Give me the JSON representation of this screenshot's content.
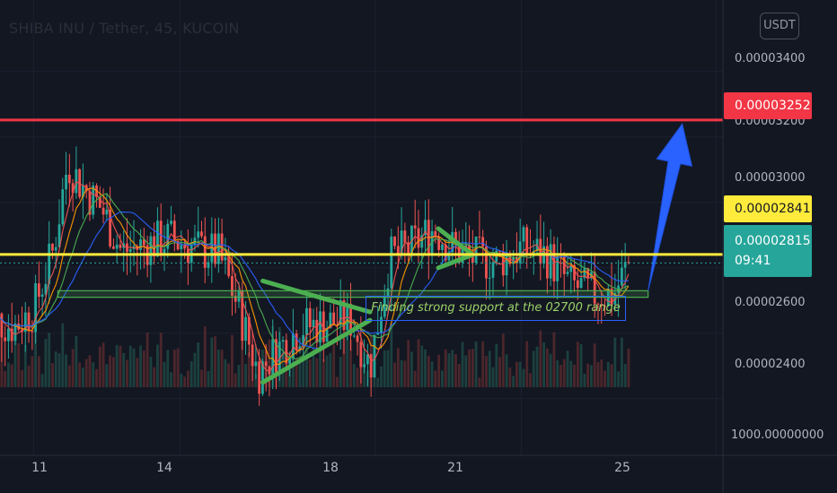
{
  "header": {
    "title": "SHIBA INU / Tether, 45, KUCOIN",
    "currency_button": "USDT"
  },
  "price_axis": {
    "tick_labels": [
      "0.00003400",
      "0.00003200",
      "0.00003000",
      "0.00002600",
      "0.00002400",
      "1000.00000000"
    ]
  },
  "time_axis": {
    "tick_labels": [
      "11",
      "14",
      "18",
      "21",
      "25"
    ]
  },
  "price_labels": {
    "resistance": "0.00003252",
    "support_line": "0.00002841",
    "current_price": "0.00002815",
    "countdown": "09:41"
  },
  "annotation": {
    "text": "Finding strong support at the 02700 range"
  },
  "colors": {
    "background": "#131722",
    "up": "#26a69a",
    "down": "#ef5350",
    "resistance": "#f23645",
    "support": "#ffeb3b",
    "pattern": "#4caf50",
    "arrow": "#2962ff",
    "zone": "#4caf50"
  },
  "chart_data": {
    "type": "candlestick",
    "symbol": "SHIBA INU / Tether",
    "interval": "45",
    "exchange": "KUCOIN",
    "currency": "USDT",
    "y_range": [
      2.32e-05,
      3.52e-05
    ],
    "x_range": [
      "10",
      "26"
    ],
    "horizontal_lines": [
      {
        "price": 3.252e-05,
        "color": "#f23645"
      },
      {
        "price": 2.841e-05,
        "color": "#ffeb3b"
      }
    ],
    "last_price": 2.815e-05,
    "support_zone": {
      "from_price": 2.71e-05,
      "to_price": 2.73e-05,
      "x_from": "11.5",
      "x_to": "23.6"
    },
    "annotations": [
      {
        "type": "triangle",
        "x": [
          "15.7",
          "17.9"
        ],
        "price_top": [
          2.76e-05,
          2.665e-05
        ],
        "price_bottom": [
          2.45e-05,
          2.64e-05
        ]
      },
      {
        "type": "triangle",
        "x": [
          "19.3",
          "20.0"
        ],
        "price_top": [
          2.92e-05,
          2.84e-05
        ],
        "price_bottom": [
          2.8e-05,
          2.84e-05
        ]
      },
      {
        "type": "arrow",
        "x": [
          "23.6",
          "24.3"
        ],
        "price": [
          2.73e-05,
          3.24e-05
        ]
      },
      {
        "type": "text",
        "text": "Finding strong support at the 02700 range"
      }
    ],
    "price_path": [
      [
        "10.0",
        2.65e-05
      ],
      [
        "10.6",
        2.62e-05
      ],
      [
        "11.0",
        2.67e-05
      ],
      [
        "11.4",
        2.85e-05
      ],
      [
        "11.7",
        3.12e-05
      ],
      [
        "12.0",
        3.05e-05
      ],
      [
        "12.4",
        2.98e-05
      ],
      [
        "12.8",
        2.85e-05
      ],
      [
        "13.3",
        2.87e-05
      ],
      [
        "13.8",
        2.89e-05
      ],
      [
        "14.3",
        2.86e-05
      ],
      [
        "14.8",
        2.84e-05
      ],
      [
        "15.2",
        2.68e-05
      ],
      [
        "15.6",
        2.48e-05
      ],
      [
        "16.0",
        2.55e-05
      ],
      [
        "16.5",
        2.62e-05
      ],
      [
        "17.0",
        2.63e-05
      ],
      [
        "17.5",
        2.64e-05
      ],
      [
        "17.9",
        2.5e-05
      ],
      [
        "18.3",
        2.83e-05
      ],
      [
        "18.7",
        2.86e-05
      ],
      [
        "19.2",
        2.92e-05
      ],
      [
        "19.6",
        2.86e-05
      ],
      [
        "20.0",
        2.83e-05
      ],
      [
        "20.5",
        2.82e-05
      ],
      [
        "21.0",
        2.86e-05
      ],
      [
        "21.5",
        2.84e-05
      ],
      [
        "22.0",
        2.75e-05
      ],
      [
        "22.5",
        2.72e-05
      ],
      [
        "22.9",
        2.72e-05
      ],
      [
        "23.2",
        2.815e-05
      ]
    ]
  }
}
